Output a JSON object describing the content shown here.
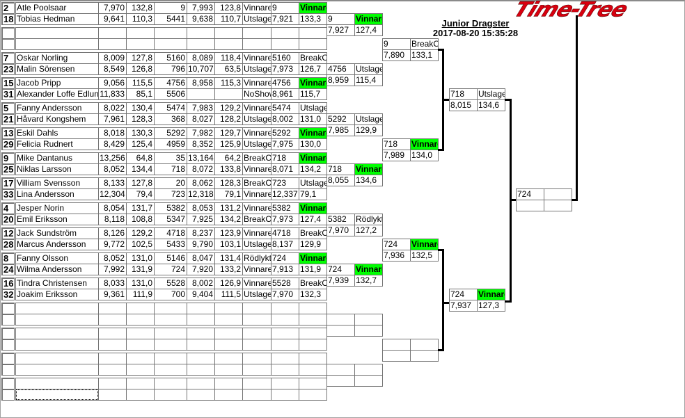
{
  "header": {
    "logo_text": "Time-Tree",
    "title": "Junior Dragster",
    "timestamp": "2017-08-20 15:35:28"
  },
  "colors": {
    "winner": "#00ff00",
    "grid": "#747474",
    "connector": "#000000",
    "logo": "#d8000f"
  },
  "pairs": [
    {
      "racers": [
        {
          "seed": "2",
          "name": "Atle Poolsaar",
          "et": "7,970",
          "speed": "132,8",
          "num": "9",
          "et2": "7,993",
          "speed2": "123,8",
          "status": "Vinnare"
        },
        {
          "seed": "18",
          "name": "Tobias Hedman",
          "et": "9,641",
          "speed": "110,3",
          "num": "5441",
          "et2": "9,638",
          "speed2": "110,7",
          "status": "Utslagen"
        }
      ],
      "r1": {
        "num": "9",
        "status": "Vinnare",
        "et": "7,921",
        "speed": "133,3"
      }
    },
    {
      "racers": [],
      "r1": null
    },
    {
      "racers": [
        {
          "seed": "7",
          "name": "Oskar Norling",
          "et": "8,009",
          "speed": "127,8",
          "num": "5160",
          "et2": "8,089",
          "speed2": "118,4",
          "status": "Vinnare"
        },
        {
          "seed": "23",
          "name": "Malin Sörensen",
          "et": "8,549",
          "speed": "126,8",
          "num": "796",
          "et2": "10,707",
          "speed2": "63,5",
          "status": "Utslagen"
        }
      ],
      "r1": {
        "num": "5160",
        "status": "BreakOut",
        "et": "7,973",
        "speed": "126,7"
      }
    },
    {
      "racers": [
        {
          "seed": "15",
          "name": "Jacob Pripp",
          "et": "9,056",
          "speed": "115,5",
          "num": "4756",
          "et2": "8,958",
          "speed2": "115,3",
          "status": "Vinnare"
        },
        {
          "seed": "31",
          "name": "Alexander Loffe Edlund",
          "et": "11,833",
          "speed": "85,1",
          "num": "5506",
          "et2": "",
          "speed2": "",
          "status": "NoShow"
        }
      ],
      "r1": {
        "num": "4756",
        "status": "Vinnare",
        "et": "8,961",
        "speed": "115,7"
      }
    },
    {
      "racers": [
        {
          "seed": "5",
          "name": "Fanny Andersson",
          "et": "8,022",
          "speed": "130,4",
          "num": "5474",
          "et2": "7,983",
          "speed2": "129,2",
          "status": "Vinnare"
        },
        {
          "seed": "21",
          "name": "Håvard Kongshem",
          "et": "7,961",
          "speed": "128,3",
          "num": "368",
          "et2": "8,027",
          "speed2": "128,2",
          "status": "Utslagen"
        }
      ],
      "r1": {
        "num": "5474",
        "status": "Utslagen",
        "et": "8,002",
        "speed": "131,0"
      }
    },
    {
      "racers": [
        {
          "seed": "13",
          "name": "Eskil Dahls",
          "et": "8,018",
          "speed": "130,3",
          "num": "5292",
          "et2": "7,982",
          "speed2": "129,7",
          "status": "Vinnare"
        },
        {
          "seed": "29",
          "name": "Felicia Rudnert",
          "et": "8,429",
          "speed": "125,4",
          "num": "4959",
          "et2": "8,352",
          "speed2": "125,9",
          "status": "Utslagen"
        }
      ],
      "r1": {
        "num": "5292",
        "status": "Vinnare",
        "et": "7,975",
        "speed": "130,0"
      }
    },
    {
      "racers": [
        {
          "seed": "9",
          "name": "Mike Dantanus",
          "et": "13,256",
          "speed": "64,8",
          "num": "35",
          "et2": "13,164",
          "speed2": "64,2",
          "status": "BreakOut"
        },
        {
          "seed": "25",
          "name": "Niklas Larsson",
          "et": "8,052",
          "speed": "134,4",
          "num": "718",
          "et2": "8,072",
          "speed2": "133,8",
          "status": "Vinnare"
        }
      ],
      "r1": {
        "num": "718",
        "status": "Vinnare",
        "et": "8,071",
        "speed": "134,2"
      }
    },
    {
      "racers": [
        {
          "seed": "17",
          "name": "Villiam Svensson",
          "et": "8,133",
          "speed": "127,8",
          "num": "20",
          "et2": "8,062",
          "speed2": "128,3",
          "status": "BreakOut"
        },
        {
          "seed": "33",
          "name": "Lina Andersson",
          "et": "12,304",
          "speed": "79,4",
          "num": "723",
          "et2": "12,318",
          "speed2": "79,1",
          "status": "Vinnare"
        }
      ],
      "r1": {
        "num": "723",
        "status": "Utslagen",
        "et": "12,337",
        "speed": "79,1"
      }
    },
    {
      "racers": [
        {
          "seed": "4",
          "name": "Jesper Norin",
          "et": "8,054",
          "speed": "131,7",
          "num": "5382",
          "et2": "8,053",
          "speed2": "131,2",
          "status": "Vinnare"
        },
        {
          "seed": "20",
          "name": "Emil Eriksson",
          "et": "8,118",
          "speed": "108,8",
          "num": "5347",
          "et2": "7,925",
          "speed2": "134,2",
          "status": "BreakOut"
        }
      ],
      "r1": {
        "num": "5382",
        "status": "Vinnare",
        "et": "7,973",
        "speed": "127,4"
      }
    },
    {
      "racers": [
        {
          "seed": "12",
          "name": "Jack Sundström",
          "et": "8,126",
          "speed": "129,2",
          "num": "4718",
          "et2": "8,237",
          "speed2": "123,9",
          "status": "Vinnare"
        },
        {
          "seed": "28",
          "name": "Marcus Andersson",
          "et": "9,772",
          "speed": "102,5",
          "num": "5433",
          "et2": "9,790",
          "speed2": "103,1",
          "status": "Utslagen"
        }
      ],
      "r1": {
        "num": "4718",
        "status": "BreakOut",
        "et": "8,137",
        "speed": "129,9"
      }
    },
    {
      "racers": [
        {
          "seed": "8",
          "name": "Fanny Olsson",
          "et": "8,052",
          "speed": "131,0",
          "num": "5146",
          "et2": "8,047",
          "speed2": "131,4",
          "status": "Rödlykta"
        },
        {
          "seed": "24",
          "name": "Wilma Andersson",
          "et": "7,992",
          "speed": "131,9",
          "num": "724",
          "et2": "7,920",
          "speed2": "133,2",
          "status": "Vinnare"
        }
      ],
      "r1": {
        "num": "724",
        "status": "Vinnare",
        "et": "7,913",
        "speed": "131,9"
      }
    },
    {
      "racers": [
        {
          "seed": "16",
          "name": "Tindra Christensen",
          "et": "8,033",
          "speed": "131,0",
          "num": "5528",
          "et2": "8,002",
          "speed2": "126,9",
          "status": "Vinnare"
        },
        {
          "seed": "32",
          "name": "Joakim Eriksson",
          "et": "9,361",
          "speed": "111,9",
          "num": "700",
          "et2": "9,404",
          "speed2": "111,5",
          "status": "Utslagen"
        }
      ],
      "r1": {
        "num": "5528",
        "status": "BreakOut",
        "et": "7,970",
        "speed": "132,3"
      }
    },
    {
      "racers": [],
      "r1": null
    },
    {
      "racers": [],
      "r1": null
    },
    {
      "racers": [],
      "r1": null
    },
    {
      "racers": [],
      "r1": null
    }
  ],
  "round2": [
    {
      "num": "9",
      "status": "Vinnare",
      "et": "7,927",
      "speed": "127,4"
    },
    {
      "num": "4756",
      "status": "Utslagen",
      "et": "8,959",
      "speed": "115,4"
    },
    {
      "num": "5292",
      "status": "Utslagen",
      "et": "7,985",
      "speed": "129,9"
    },
    {
      "num": "718",
      "status": "Vinnare",
      "et": "8,055",
      "speed": "134,6"
    },
    {
      "num": "5382",
      "status": "Rödlykta",
      "et": "7,970",
      "speed": "127,2"
    },
    {
      "num": "724",
      "status": "Vinnare",
      "et": "7,939",
      "speed": "132,7"
    },
    null,
    null
  ],
  "round3": [
    {
      "num": "9",
      "status": "BreakOut",
      "et": "7,890",
      "speed": "133,1"
    },
    {
      "num": "718",
      "status": "Vinnare",
      "et": "7,989",
      "speed": "134,0"
    },
    {
      "num": "724",
      "status": "Vinnare",
      "et": "7,936",
      "speed": "132,5"
    },
    null
  ],
  "round4": [
    {
      "num": "718",
      "status": "Utslagen",
      "et": "8,015",
      "speed": "134,6"
    },
    {
      "num": "724",
      "status": "Vinnare",
      "et": "7,937",
      "speed": "127,3"
    }
  ],
  "final": {
    "num": "724",
    "status": "",
    "et": "",
    "speed": ""
  }
}
